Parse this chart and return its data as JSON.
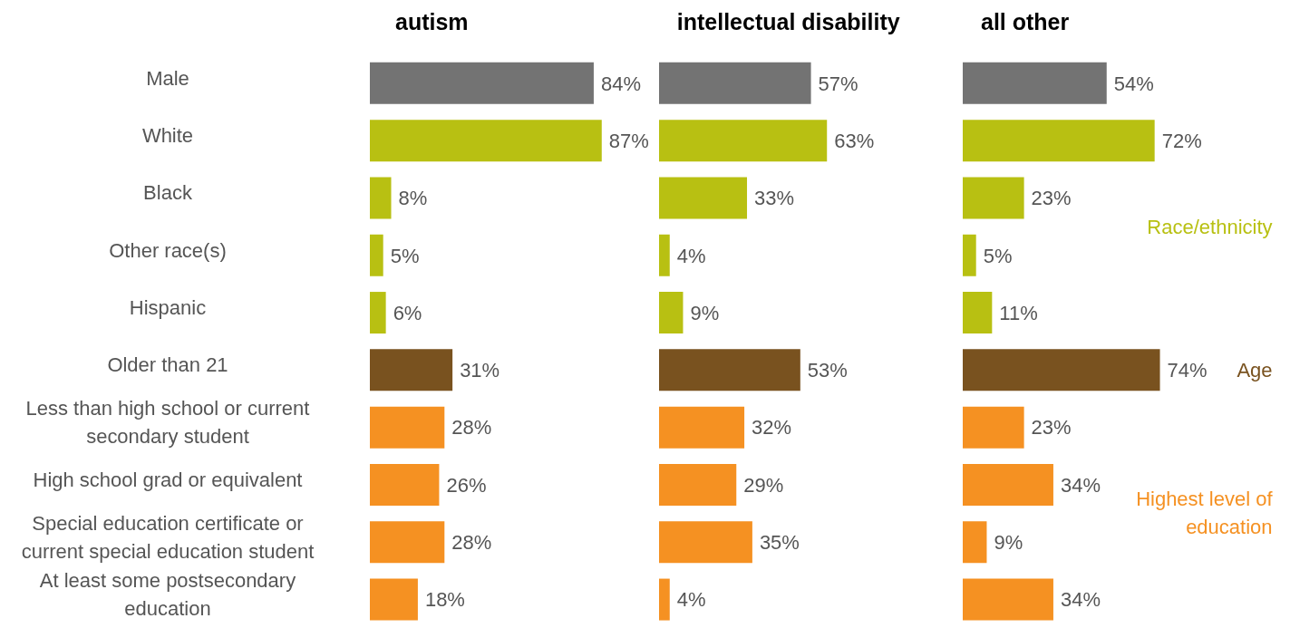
{
  "chart_data": [
    {
      "type": "bar",
      "orientation": "horizontal",
      "title": "autism",
      "tick_labels": "y",
      "categories": [
        "Male",
        "White",
        "Black",
        "Other race(s)",
        "Hispanic",
        "Older than 21",
        "Less than high school or current secondary student",
        "High school grad or equivalent",
        "Special education certificate or current special education student",
        "At least some postsecondary education"
      ],
      "values": [
        84,
        87,
        8,
        5,
        6,
        31,
        28,
        26,
        28,
        18
      ],
      "value_labels": [
        "84%",
        "87%",
        "8%",
        "5%",
        "6%",
        "31%",
        "28%",
        "26%",
        "28%",
        "18%"
      ],
      "colors": [
        "#737373",
        "#b8c012",
        "#b8c012",
        "#b8c012",
        "#b8c012",
        "#79521f",
        "#f59122",
        "#f59122",
        "#f59122",
        "#f59122"
      ]
    },
    {
      "type": "bar",
      "orientation": "horizontal",
      "title": "intellectual disability",
      "tick_labels": false,
      "categories": [
        null,
        null,
        null,
        null,
        null,
        null,
        null,
        null,
        null,
        null
      ],
      "values": [
        57,
        63,
        33,
        4,
        9,
        53,
        32,
        29,
        35,
        4
      ],
      "value_labels": [
        "57%",
        "63%",
        "33%",
        "4%",
        "9%",
        "53%",
        "32%",
        "29%",
        "35%",
        "4%"
      ],
      "colors": [
        "#737373",
        "#b8c012",
        "#b8c012",
        "#b8c012",
        "#b8c012",
        "#79521f",
        "#f59122",
        "#f59122",
        "#f59122",
        "#f59122"
      ]
    },
    {
      "type": "bar",
      "orientation": "horizontal",
      "title": "all other",
      "tick_labels": false,
      "categories": [
        null,
        null,
        null,
        null,
        null,
        null,
        null,
        null,
        null,
        null
      ],
      "values": [
        54,
        72,
        23,
        5,
        11,
        74,
        23,
        34,
        9,
        34
      ],
      "value_labels": [
        "54%",
        "72%",
        "23%",
        "5%",
        "11%",
        "74%",
        "23%",
        "34%",
        "9%",
        "34%"
      ],
      "colors": [
        "#737373",
        "#b8c012",
        "#b8c012",
        "#b8c012",
        "#b8c012",
        "#79521f",
        "#f59122",
        "#f59122",
        "#f59122",
        "#f59122"
      ],
      "annotations": [
        "Race/ethnicity",
        "Age",
        "Highest level of education"
      ]
    }
  ]
}
